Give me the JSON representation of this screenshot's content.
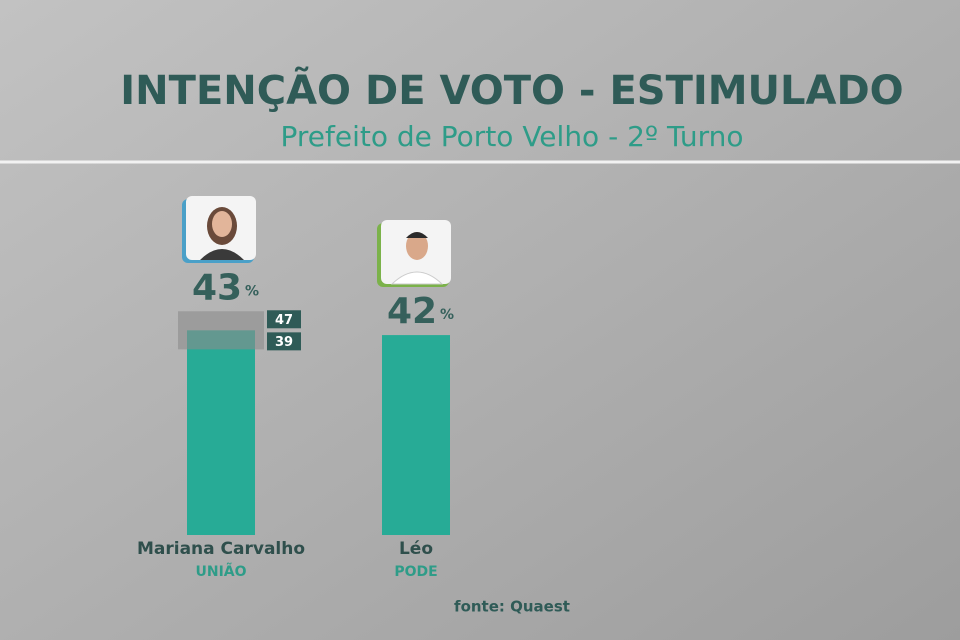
{
  "chart_data": {
    "type": "bar",
    "title": "INTENÇÃO DE VOTO - ESTIMULADO",
    "subtitle": "Prefeito de Porto Velho - 2º Turno",
    "categories": [
      "Mariana Carvalho",
      "Léo"
    ],
    "parties": [
      "UNIÃO",
      "PODE"
    ],
    "values": [
      43,
      42
    ],
    "value_unit": "%",
    "intervals": [
      {
        "low": 39,
        "high": 47
      },
      null
    ],
    "color": "#27ab96",
    "ylim": [
      0,
      50
    ],
    "source": "fonte: Quaest"
  }
}
